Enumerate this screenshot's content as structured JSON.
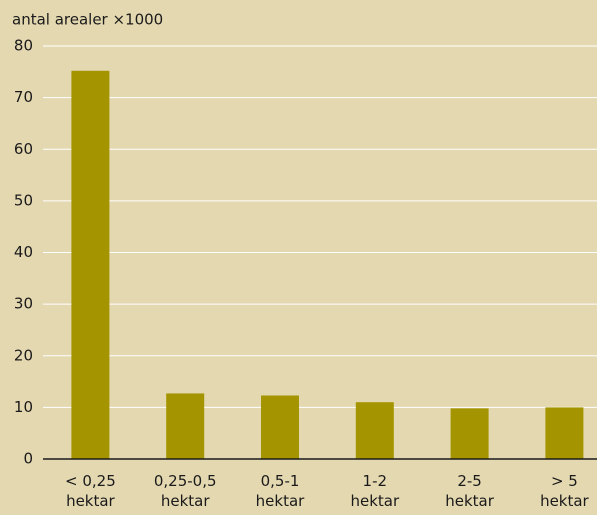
{
  "chart_data": {
    "type": "bar",
    "title": "antal arealer ×1000",
    "categories": [
      "< 0,25 hektar",
      "0,25-0,5 hektar",
      "0,5-1 hektar",
      "1-2 hektar",
      "2-5 hektar",
      "> 5 hektar"
    ],
    "values": [
      75.2,
      12.7,
      12.3,
      11.0,
      9.8,
      10.0
    ],
    "color": "#a39400",
    "ylim": [
      0,
      80
    ],
    "yticks": [
      0,
      10,
      20,
      30,
      40,
      50,
      60,
      70,
      80
    ],
    "grid": true
  }
}
